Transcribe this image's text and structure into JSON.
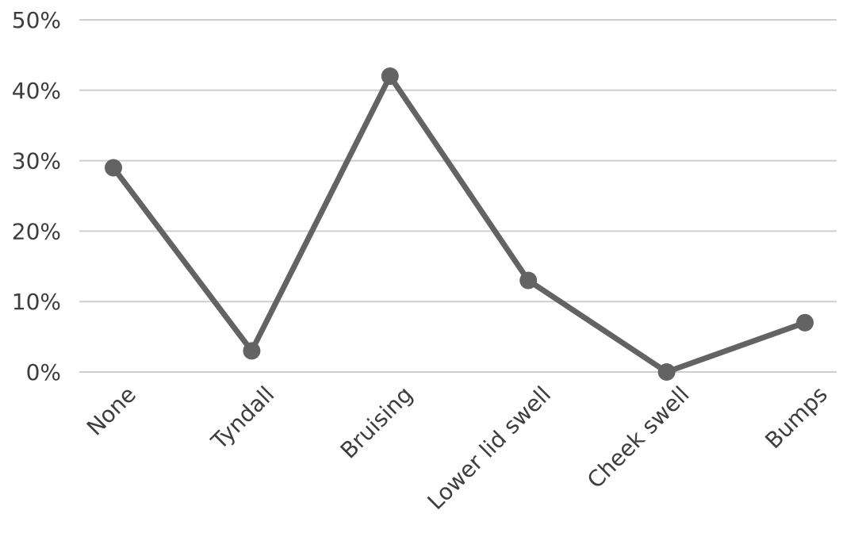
{
  "chart_data": {
    "type": "line",
    "title": "",
    "xlabel": "",
    "ylabel": "",
    "categories": [
      "None",
      "Tyndall",
      "Bruising",
      "Lower lid swell",
      "Cheek swell",
      "Bumps"
    ],
    "series": [
      {
        "values": [
          29,
          3,
          42,
          13,
          0,
          7
        ]
      }
    ],
    "ylim": [
      0,
      50
    ],
    "yticks": [
      0,
      10,
      20,
      30,
      40,
      50
    ],
    "ytick_labels": [
      "0%",
      "10%",
      "20%",
      "30%",
      "40%",
      "50%"
    ],
    "y_unit": "%",
    "grid": true,
    "legend": "none",
    "colors": {
      "line": "#636363",
      "grid": "#cfcfcf",
      "text": "#3d3d3d"
    }
  }
}
